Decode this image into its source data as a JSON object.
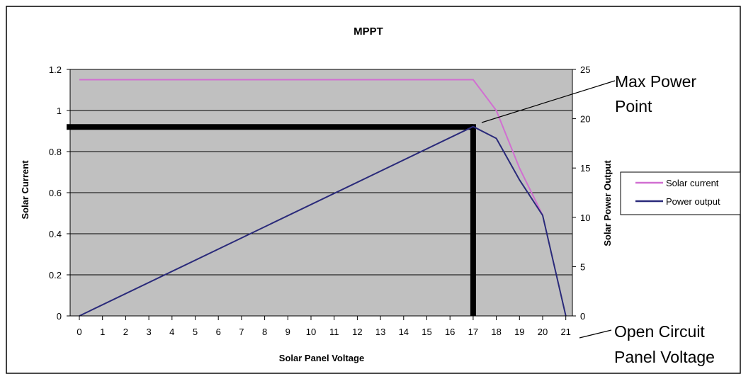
{
  "chart_data": {
    "type": "line",
    "title": "MPPT",
    "xlabel": "Solar Panel Voltage",
    "ylabel_left": "Solar Current",
    "ylabel_right": "Solar Power Output",
    "x_ticks": [
      0,
      1,
      2,
      3,
      4,
      5,
      6,
      7,
      8,
      9,
      10,
      11,
      12,
      13,
      14,
      15,
      16,
      17,
      18,
      19,
      20,
      21
    ],
    "ylim_left": [
      0,
      1.2
    ],
    "yticks_left": [
      "0",
      "0.2",
      "0.4",
      "0.6",
      "0.8",
      "1",
      "1.2"
    ],
    "ylim_right": [
      0,
      25
    ],
    "yticks_right": [
      "0",
      "5",
      "10",
      "15",
      "20",
      "25"
    ],
    "grid": "horizontal",
    "legend_position": "right",
    "series": [
      {
        "name": "Solar current",
        "axis": "left",
        "color": "#d16fd1",
        "x": [
          0,
          17,
          18,
          19,
          20
        ],
        "y": [
          1.15,
          1.15,
          1.0,
          0.72,
          0.49
        ]
      },
      {
        "name": "Power output",
        "axis": "right",
        "color": "#2a2a7a",
        "x": [
          0,
          17,
          18,
          19,
          20,
          21
        ],
        "y": [
          0,
          19.2,
          18.0,
          13.8,
          10.2,
          0
        ]
      }
    ],
    "max_power_point": {
      "x": 17,
      "y_current": 0.92,
      "color": "#000000"
    },
    "annotations": [
      {
        "lines": [
          "Max Power",
          "Point"
        ]
      },
      {
        "lines": [
          "Open Circuit",
          "Panel Voltage"
        ]
      }
    ]
  }
}
